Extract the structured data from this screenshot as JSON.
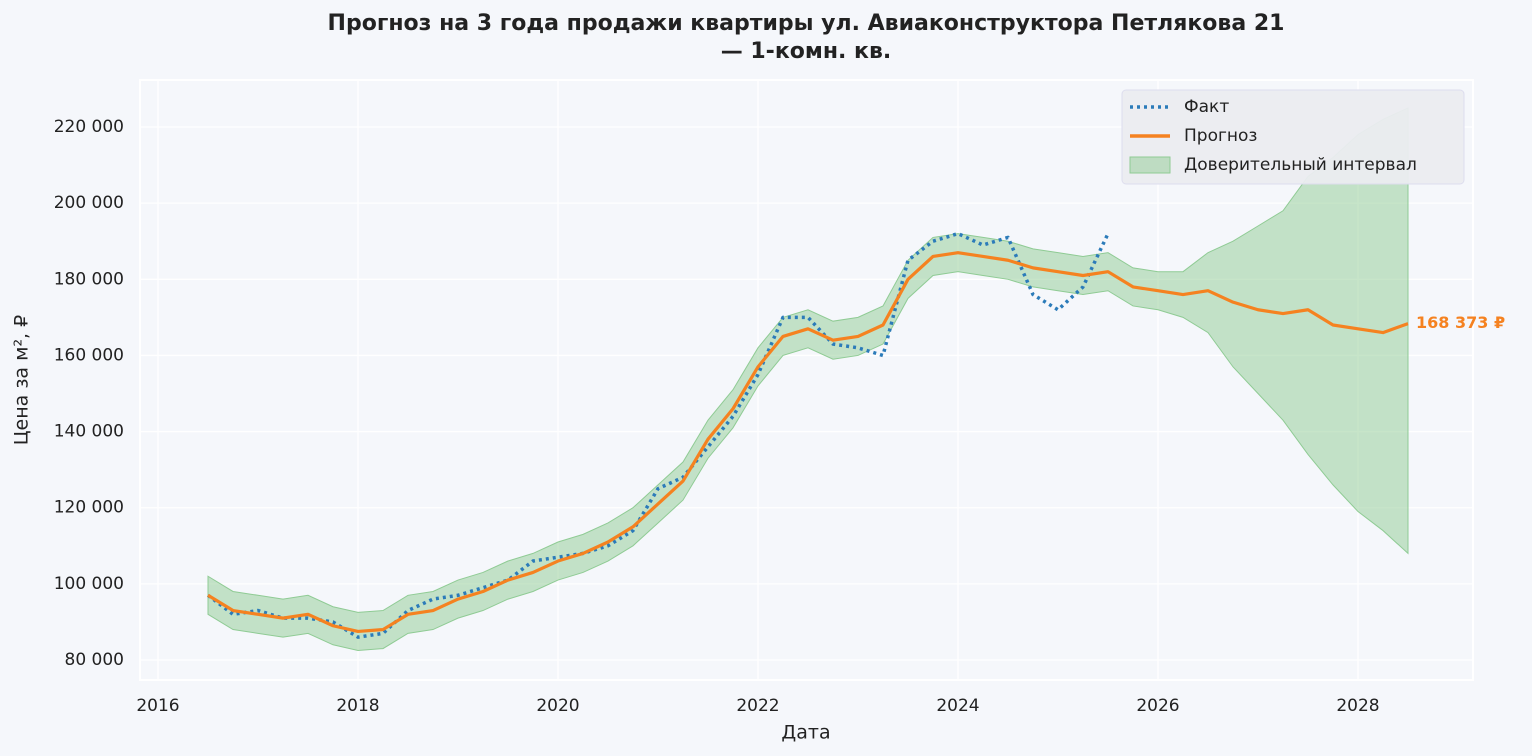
{
  "chart_data": {
    "type": "line",
    "title": [
      "Прогноз на 3 года продажи квартиры  ул. Авиаконструктора Петлякова 21",
      "— 1-комн. кв."
    ],
    "xlabel": "Дата",
    "ylabel": "Цена за м², ₽",
    "x": [
      2016.5,
      2016.75,
      2017,
      2017.25,
      2017.5,
      2017.75,
      2018,
      2018.25,
      2018.5,
      2018.75,
      2019,
      2019.25,
      2019.5,
      2019.75,
      2020,
      2020.25,
      2020.5,
      2020.75,
      2021,
      2021.25,
      2021.5,
      2021.75,
      2022,
      2022.25,
      2022.5,
      2022.75,
      2023,
      2023.25,
      2023.5,
      2023.75,
      2024,
      2024.25,
      2024.5,
      2024.75,
      2025,
      2025.25,
      2025.5,
      2025.75,
      2026,
      2026.25,
      2026.5,
      2026.75,
      2027,
      2027.25,
      2027.5,
      2027.75,
      2028,
      2028.25,
      2028.5
    ],
    "series": [
      {
        "name": "Факт",
        "color": "#2b7bb9",
        "style": "dotted",
        "values": [
          97000,
          92000,
          93000,
          91000,
          91000,
          90000,
          86000,
          87000,
          93000,
          96000,
          97000,
          99000,
          101000,
          106000,
          107000,
          108000,
          110000,
          114000,
          125000,
          128000,
          136000,
          144000,
          155000,
          170000,
          170000,
          163000,
          162000,
          160000,
          185000,
          190000,
          192000,
          189000,
          191000,
          176000,
          172000,
          178000,
          192000,
          null,
          null,
          null,
          null,
          null,
          null,
          null,
          null,
          null,
          null,
          null,
          null
        ]
      },
      {
        "name": "Прогноз",
        "color": "#f58220",
        "style": "solid",
        "values": [
          97000,
          93000,
          92000,
          91000,
          92000,
          89000,
          87500,
          88000,
          92000,
          93000,
          96000,
          98000,
          101000,
          103000,
          106000,
          108000,
          111000,
          115000,
          121000,
          127000,
          138000,
          146000,
          157000,
          165000,
          167000,
          164000,
          165000,
          168000,
          180000,
          186000,
          187000,
          186000,
          185000,
          183000,
          182000,
          181000,
          182000,
          178000,
          177000,
          176000,
          177000,
          174000,
          172000,
          171000,
          172000,
          168000,
          167000,
          166000,
          168373
        ]
      }
    ],
    "band": {
      "name": "Доверительный интервал",
      "color": "#8fcb94",
      "lower": [
        92000,
        88000,
        87000,
        86000,
        87000,
        84000,
        82500,
        83000,
        87000,
        88000,
        91000,
        93000,
        96000,
        98000,
        101000,
        103000,
        106000,
        110000,
        116000,
        122000,
        133000,
        141000,
        152000,
        160000,
        162000,
        159000,
        160000,
        163000,
        175000,
        181000,
        182000,
        181000,
        180000,
        178000,
        177000,
        176000,
        177000,
        173000,
        172000,
        170000,
        166000,
        157000,
        150000,
        143000,
        134000,
        126000,
        119000,
        114000,
        108000
      ],
      "upper": [
        102000,
        98000,
        97000,
        96000,
        97000,
        94000,
        92500,
        93000,
        97000,
        98000,
        101000,
        103000,
        106000,
        108000,
        111000,
        113000,
        116000,
        120000,
        126000,
        132000,
        143000,
        151000,
        162000,
        170000,
        172000,
        169000,
        170000,
        173000,
        185000,
        191000,
        192000,
        191000,
        190000,
        188000,
        187000,
        186000,
        187000,
        183000,
        182000,
        182000,
        187000,
        190000,
        194000,
        198000,
        207000,
        212000,
        218000,
        222000,
        225000
      ]
    },
    "annotation": "168 373 ₽",
    "xlim": [
      2015.82,
      2029.15
    ],
    "xticks": [
      2016,
      2018,
      2020,
      2022,
      2024,
      2026,
      2028
    ],
    "ylim": [
      74750,
      232350
    ],
    "yticks": [
      {
        "value": 80000,
        "label": "80 000"
      },
      {
        "value": 100000,
        "label": "100 000"
      },
      {
        "value": 120000,
        "label": "120 000"
      },
      {
        "value": 140000,
        "label": "140 000"
      },
      {
        "value": 160000,
        "label": "160 000"
      },
      {
        "value": 180000,
        "label": "180 000"
      },
      {
        "value": 200000,
        "label": "200 000"
      },
      {
        "value": 220000,
        "label": "220 000"
      }
    ],
    "grid": true,
    "legend": "upper right"
  }
}
